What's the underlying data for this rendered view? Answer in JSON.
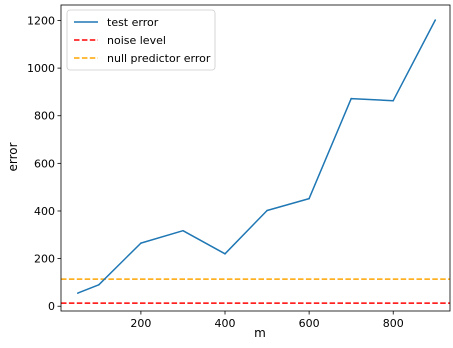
{
  "chart_data": {
    "type": "line",
    "title": "",
    "xlabel": "m",
    "ylabel": "error",
    "xlim": [
      10,
      935
    ],
    "ylim": [
      -20,
      1265
    ],
    "xticks": [
      200,
      400,
      600,
      800
    ],
    "yticks": [
      0,
      200,
      400,
      600,
      800,
      1000,
      1200
    ],
    "grid": false,
    "legend_position": "upper-left",
    "series": [
      {
        "name": "test error",
        "style": "solid",
        "color": "#1f77b4",
        "x": [
          50,
          100,
          200,
          300,
          400,
          500,
          600,
          700,
          800,
          900
        ],
        "y": [
          55,
          90,
          265,
          317,
          220,
          402,
          452,
          872,
          863,
          1202
        ]
      }
    ],
    "reference_lines": [
      {
        "name": "noise level",
        "style": "dashed",
        "color": "#ff0000",
        "y": 13
      },
      {
        "name": "null predictor error",
        "style": "dashed",
        "color": "#ffa500",
        "y": 114
      }
    ]
  }
}
